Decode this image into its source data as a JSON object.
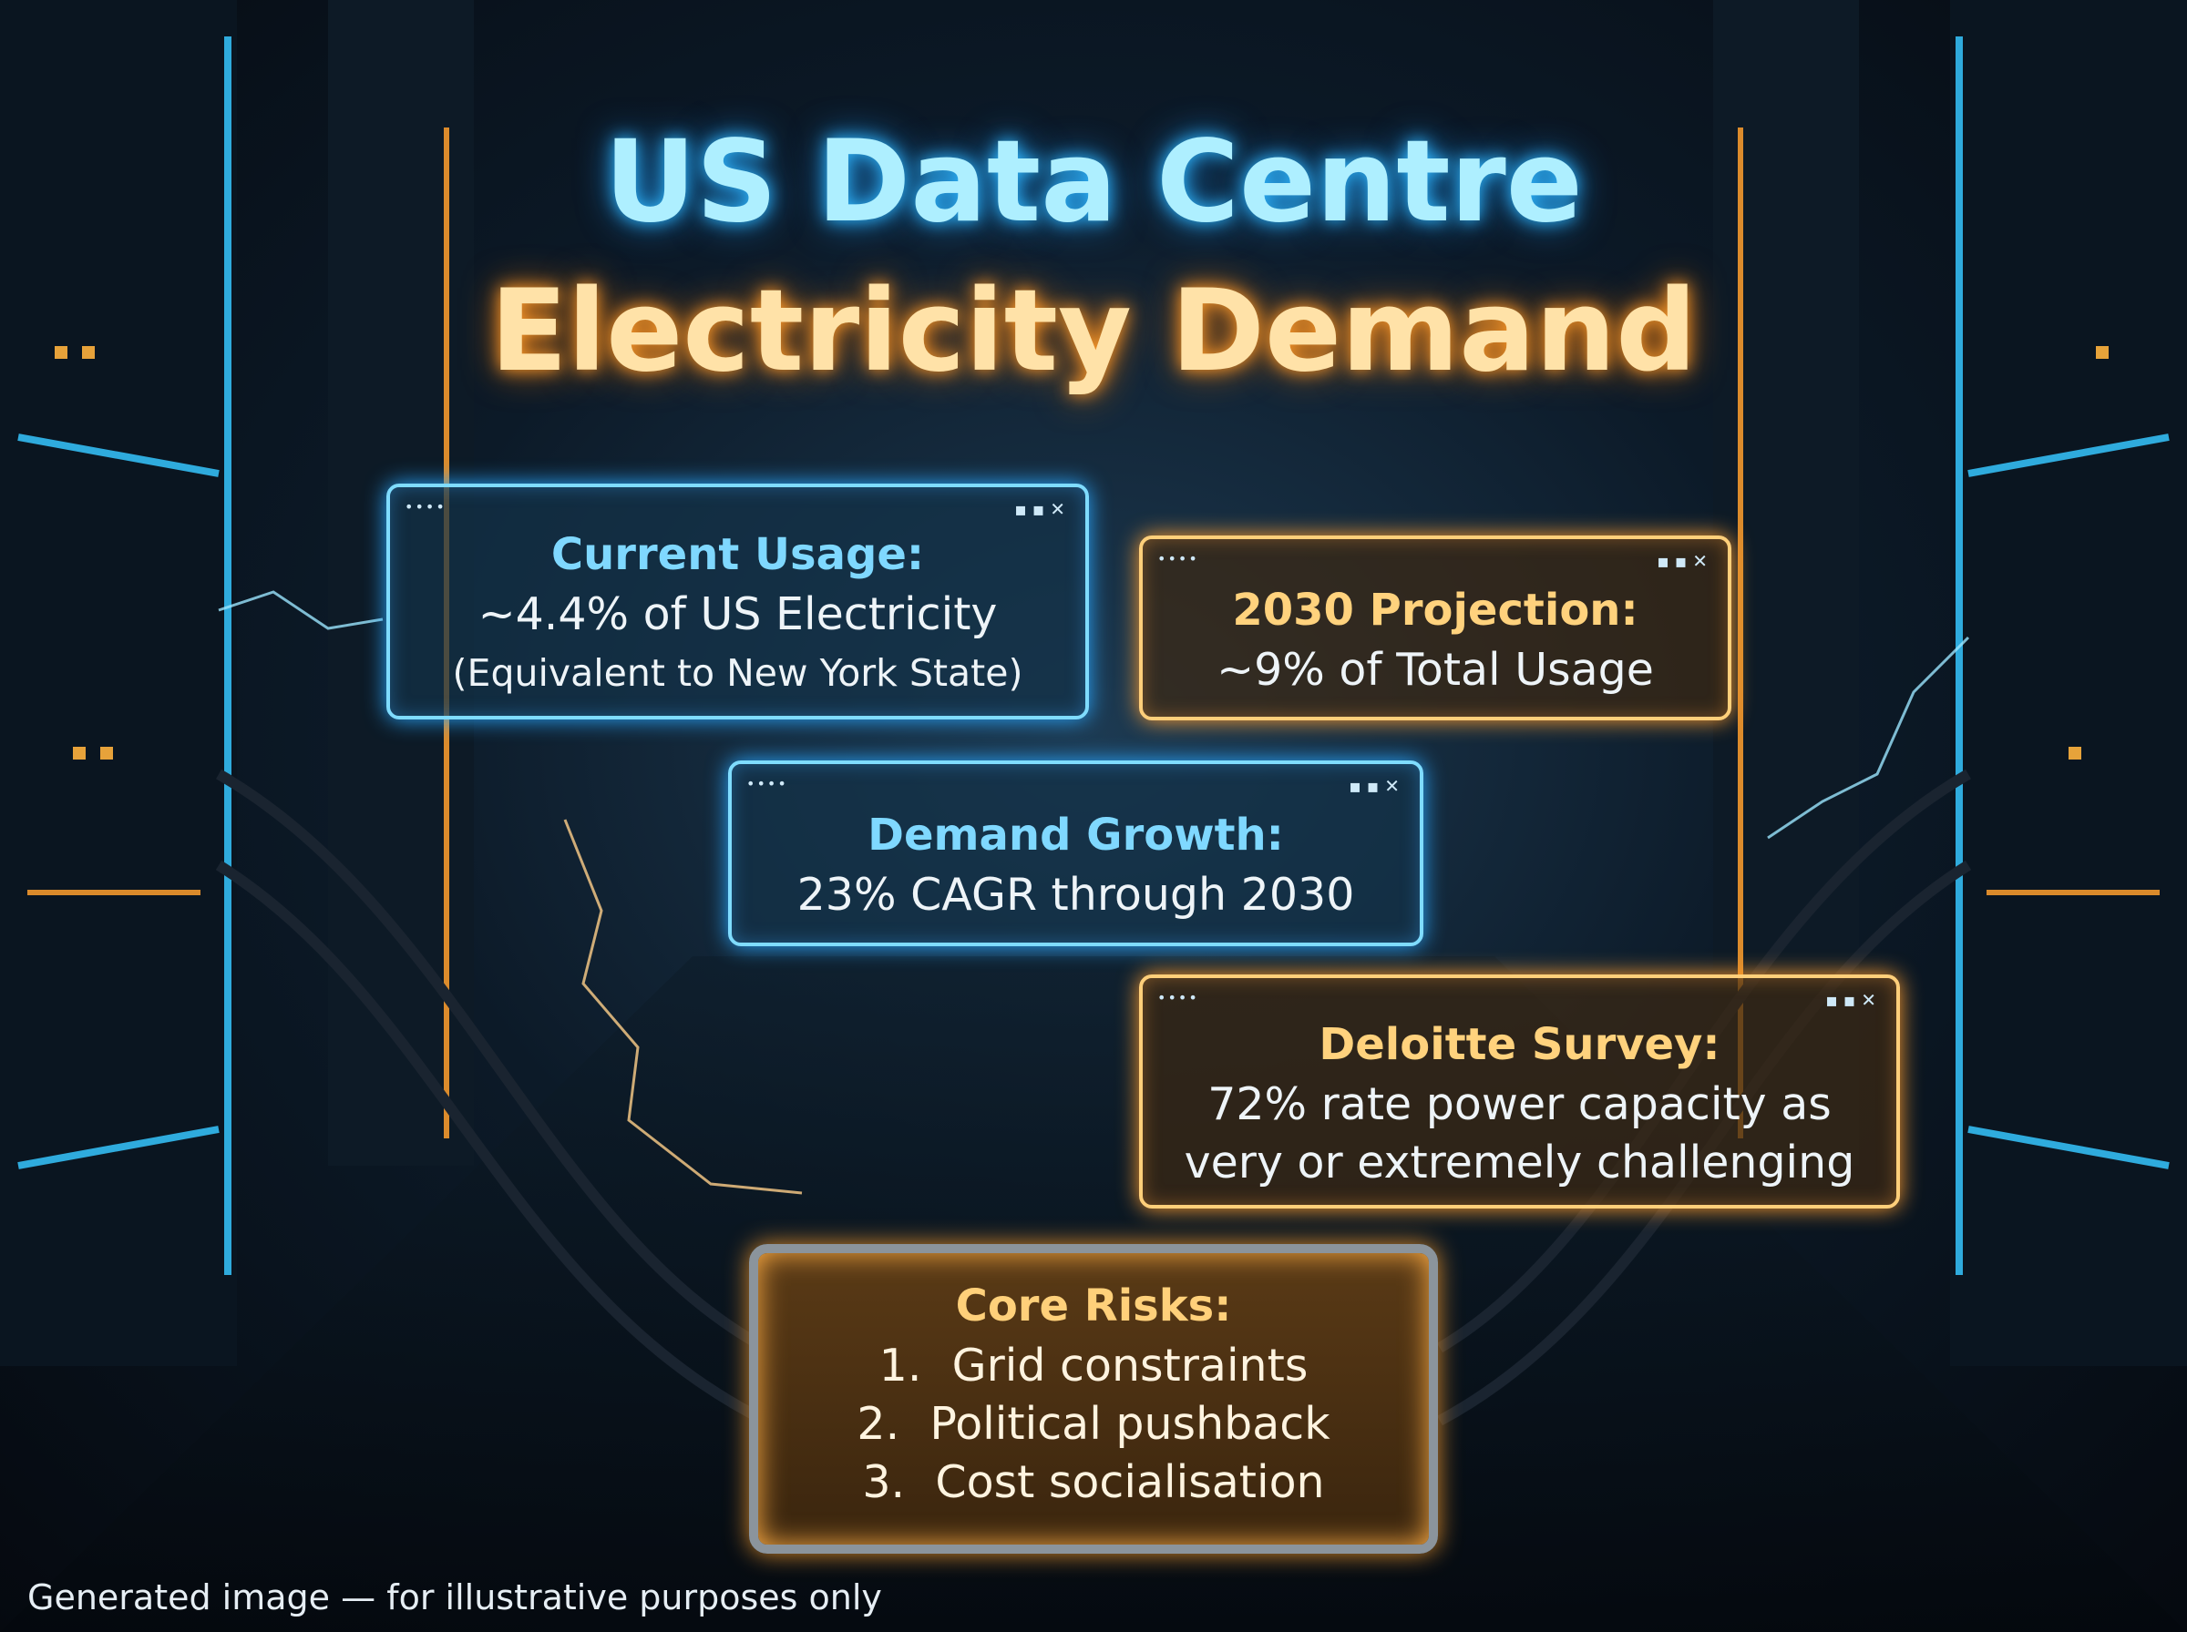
{
  "title": {
    "line1": "US Data Centre",
    "line2": "Electricity Demand"
  },
  "panels": [
    {
      "heading": "Current Usage:",
      "lines": [
        "~4.4% of US Electricity",
        "(Equivalent to New York State)"
      ]
    },
    {
      "heading": "2030 Projection:",
      "lines": [
        "~9% of Total Usage"
      ]
    },
    {
      "heading": "Demand Growth:",
      "lines": [
        "23% CAGR through 2030"
      ]
    },
    {
      "heading": "Deloitte Survey:",
      "lines": [
        "72% rate power capacity as",
        "very or extremely challenging"
      ]
    }
  ],
  "risks": {
    "heading": "Core Risks:",
    "items": [
      {
        "number": "1.",
        "text": "Grid constraints"
      },
      {
        "number": "2.",
        "text": "Political pushback"
      },
      {
        "number": "3.",
        "text": "Cost socialisation"
      }
    ]
  },
  "footer": "Generated image — for illustrative purposes only"
}
